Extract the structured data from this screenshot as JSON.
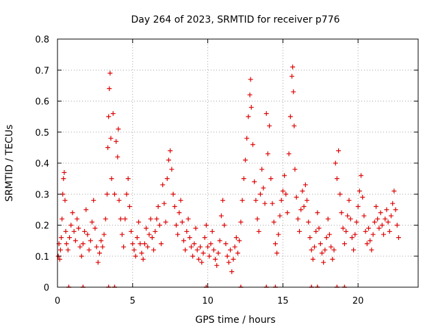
{
  "chart_data": {
    "type": "scatter",
    "title": "Day 264 of 2023, SRMTID for receiver p776",
    "xlabel": "GPS time / hours",
    "ylabel": "SRMTID / TECUs",
    "xlim": [
      0,
      24
    ],
    "ylim": [
      0,
      0.8
    ],
    "x_ticks": [
      0,
      5,
      10,
      15,
      20
    ],
    "x_tick_labels": [
      "0",
      "5",
      "10",
      "15",
      "20"
    ],
    "y_ticks": [
      0,
      0.1,
      0.2,
      0.3,
      0.4,
      0.5,
      0.6,
      0.7,
      0.8
    ],
    "y_tick_labels": [
      "0",
      "0.1",
      "0.2",
      "0.3",
      "0.4",
      "0.5",
      "0.6",
      "0.7",
      "0.8"
    ],
    "grid": true,
    "marker": "+",
    "marker_color": "#dd0000",
    "series": [
      {
        "name": "SRMTID",
        "points": [
          [
            0.05,
            0.1
          ],
          [
            0.1,
            0.14
          ],
          [
            0.15,
            0.09
          ],
          [
            0.2,
            0.12
          ],
          [
            0.25,
            0.16
          ],
          [
            0.3,
            0.22
          ],
          [
            0.35,
            0.3
          ],
          [
            0.4,
            0.35
          ],
          [
            0.45,
            0.37
          ],
          [
            0.5,
            0.28
          ],
          [
            0.55,
            0.18
          ],
          [
            0.6,
            0.14
          ],
          [
            0.7,
            0.12
          ],
          [
            0.8,
            0.16
          ],
          [
            0.9,
            0.2
          ],
          [
            1.0,
            0.24
          ],
          [
            1.1,
            0.18
          ],
          [
            1.2,
            0.15
          ],
          [
            1.3,
            0.22
          ],
          [
            1.4,
            0.19
          ],
          [
            1.5,
            0.13
          ],
          [
            1.6,
            0.1
          ],
          [
            1.7,
            0.14
          ],
          [
            1.8,
            0.18
          ],
          [
            1.9,
            0.25
          ],
          [
            2.0,
            0.17
          ],
          [
            2.1,
            0.12
          ],
          [
            2.2,
            0.15
          ],
          [
            2.3,
            0.21
          ],
          [
            2.4,
            0.28
          ],
          [
            2.5,
            0.19
          ],
          [
            2.6,
            0.13
          ],
          [
            2.7,
            0.08
          ],
          [
            2.8,
            0.11
          ],
          [
            2.9,
            0.15
          ],
          [
            3.0,
            0.13
          ],
          [
            3.1,
            0.17
          ],
          [
            3.2,
            0.22
          ],
          [
            3.3,
            0.3
          ],
          [
            3.35,
            0.45
          ],
          [
            3.4,
            0.55
          ],
          [
            3.45,
            0.64
          ],
          [
            3.5,
            0.69
          ],
          [
            3.55,
            0.48
          ],
          [
            3.6,
            0.35
          ],
          [
            3.7,
            0.56
          ],
          [
            3.8,
            0.3
          ],
          [
            3.9,
            0.47
          ],
          [
            4.0,
            0.42
          ],
          [
            4.05,
            0.51
          ],
          [
            4.1,
            0.28
          ],
          [
            4.2,
            0.22
          ],
          [
            4.3,
            0.17
          ],
          [
            4.4,
            0.13
          ],
          [
            4.5,
            0.22
          ],
          [
            4.6,
            0.3
          ],
          [
            4.7,
            0.35
          ],
          [
            4.8,
            0.26
          ],
          [
            4.9,
            0.18
          ],
          [
            5.0,
            0.14
          ],
          [
            5.1,
            0.12
          ],
          [
            5.2,
            0.1
          ],
          [
            5.3,
            0.16
          ],
          [
            5.4,
            0.21
          ],
          [
            5.5,
            0.14
          ],
          [
            5.6,
            0.11
          ],
          [
            5.7,
            0.09
          ],
          [
            5.8,
            0.14
          ],
          [
            5.9,
            0.19
          ],
          [
            6.0,
            0.13
          ],
          [
            6.1,
            0.17
          ],
          [
            6.2,
            0.22
          ],
          [
            6.3,
            0.16
          ],
          [
            6.4,
            0.12
          ],
          [
            6.5,
            0.18
          ],
          [
            6.6,
            0.22
          ],
          [
            6.7,
            0.26
          ],
          [
            6.8,
            0.2
          ],
          [
            6.9,
            0.14
          ],
          [
            7.0,
            0.33
          ],
          [
            7.1,
            0.27
          ],
          [
            7.2,
            0.21
          ],
          [
            7.3,
            0.35
          ],
          [
            7.4,
            0.41
          ],
          [
            7.5,
            0.44
          ],
          [
            7.6,
            0.38
          ],
          [
            7.7,
            0.3
          ],
          [
            7.8,
            0.26
          ],
          [
            7.9,
            0.2
          ],
          [
            8.0,
            0.17
          ],
          [
            8.1,
            0.24
          ],
          [
            8.2,
            0.28
          ],
          [
            8.3,
            0.21
          ],
          [
            8.4,
            0.15
          ],
          [
            8.5,
            0.12
          ],
          [
            8.6,
            0.18
          ],
          [
            8.7,
            0.22
          ],
          [
            8.8,
            0.16
          ],
          [
            8.9,
            0.13
          ],
          [
            9.0,
            0.1
          ],
          [
            9.1,
            0.14
          ],
          [
            9.2,
            0.19
          ],
          [
            9.3,
            0.12
          ],
          [
            9.4,
            0.09
          ],
          [
            9.5,
            0.13
          ],
          [
            9.6,
            0.08
          ],
          [
            9.7,
            0.11
          ],
          [
            9.8,
            0.16
          ],
          [
            9.9,
            0.2
          ],
          [
            10.0,
            0.13
          ],
          [
            10.1,
            0.1
          ],
          [
            10.2,
            0.14
          ],
          [
            10.3,
            0.18
          ],
          [
            10.4,
            0.12
          ],
          [
            10.5,
            0.09
          ],
          [
            10.6,
            0.07
          ],
          [
            10.7,
            0.11
          ],
          [
            10.8,
            0.15
          ],
          [
            10.9,
            0.23
          ],
          [
            11.0,
            0.28
          ],
          [
            11.1,
            0.2
          ],
          [
            11.2,
            0.14
          ],
          [
            11.3,
            0.1
          ],
          [
            11.4,
            0.08
          ],
          [
            11.5,
            0.12
          ],
          [
            11.6,
            0.05
          ],
          [
            11.7,
            0.09
          ],
          [
            11.8,
            0.13
          ],
          [
            11.9,
            0.16
          ],
          [
            12.0,
            0.11
          ],
          [
            12.1,
            0.15
          ],
          [
            12.2,
            0.21
          ],
          [
            12.3,
            0.28
          ],
          [
            12.4,
            0.35
          ],
          [
            12.5,
            0.41
          ],
          [
            12.6,
            0.48
          ],
          [
            12.7,
            0.55
          ],
          [
            12.8,
            0.62
          ],
          [
            12.85,
            0.67
          ],
          [
            12.9,
            0.58
          ],
          [
            13.0,
            0.46
          ],
          [
            13.1,
            0.34
          ],
          [
            13.2,
            0.28
          ],
          [
            13.3,
            0.22
          ],
          [
            13.4,
            0.18
          ],
          [
            13.5,
            0.3
          ],
          [
            13.6,
            0.38
          ],
          [
            13.7,
            0.32
          ],
          [
            13.8,
            0.27
          ],
          [
            13.9,
            0.56
          ],
          [
            14.0,
            0.43
          ],
          [
            14.1,
            0.52
          ],
          [
            14.2,
            0.35
          ],
          [
            14.3,
            0.27
          ],
          [
            14.4,
            0.21
          ],
          [
            14.5,
            0.14
          ],
          [
            14.6,
            0.11
          ],
          [
            14.7,
            0.17
          ],
          [
            14.8,
            0.23
          ],
          [
            14.9,
            0.28
          ],
          [
            15.0,
            0.31
          ],
          [
            15.1,
            0.36
          ],
          [
            15.2,
            0.3
          ],
          [
            15.3,
            0.24
          ],
          [
            15.4,
            0.43
          ],
          [
            15.5,
            0.55
          ],
          [
            15.6,
            0.68
          ],
          [
            15.65,
            0.71
          ],
          [
            15.7,
            0.63
          ],
          [
            15.75,
            0.52
          ],
          [
            15.8,
            0.38
          ],
          [
            15.9,
            0.29
          ],
          [
            16.0,
            0.22
          ],
          [
            16.1,
            0.18
          ],
          [
            16.2,
            0.25
          ],
          [
            16.3,
            0.31
          ],
          [
            16.4,
            0.26
          ],
          [
            16.5,
            0.33
          ],
          [
            16.6,
            0.28
          ],
          [
            16.7,
            0.21
          ],
          [
            16.8,
            0.16
          ],
          [
            16.9,
            0.12
          ],
          [
            17.0,
            0.09
          ],
          [
            17.1,
            0.13
          ],
          [
            17.2,
            0.18
          ],
          [
            17.3,
            0.24
          ],
          [
            17.4,
            0.19
          ],
          [
            17.5,
            0.14
          ],
          [
            17.6,
            0.11
          ],
          [
            17.7,
            0.08
          ],
          [
            17.8,
            0.12
          ],
          [
            17.9,
            0.16
          ],
          [
            18.0,
            0.22
          ],
          [
            18.1,
            0.17
          ],
          [
            18.2,
            0.13
          ],
          [
            18.3,
            0.09
          ],
          [
            18.4,
            0.12
          ],
          [
            18.5,
            0.4
          ],
          [
            18.6,
            0.35
          ],
          [
            18.7,
            0.44
          ],
          [
            18.8,
            0.3
          ],
          [
            18.9,
            0.24
          ],
          [
            19.0,
            0.19
          ],
          [
            19.1,
            0.14
          ],
          [
            19.2,
            0.18
          ],
          [
            19.3,
            0.23
          ],
          [
            19.4,
            0.28
          ],
          [
            19.5,
            0.22
          ],
          [
            19.6,
            0.16
          ],
          [
            19.7,
            0.12
          ],
          [
            19.8,
            0.17
          ],
          [
            19.9,
            0.21
          ],
          [
            20.0,
            0.26
          ],
          [
            20.1,
            0.31
          ],
          [
            20.2,
            0.36
          ],
          [
            20.3,
            0.29
          ],
          [
            20.4,
            0.23
          ],
          [
            20.5,
            0.18
          ],
          [
            20.6,
            0.14
          ],
          [
            20.7,
            0.19
          ],
          [
            20.8,
            0.15
          ],
          [
            20.9,
            0.12
          ],
          [
            21.0,
            0.17
          ],
          [
            21.1,
            0.21
          ],
          [
            21.2,
            0.26
          ],
          [
            21.3,
            0.22
          ],
          [
            21.4,
            0.19
          ],
          [
            21.5,
            0.24
          ],
          [
            21.6,
            0.2
          ],
          [
            21.7,
            0.17
          ],
          [
            21.8,
            0.22
          ],
          [
            21.9,
            0.25
          ],
          [
            22.0,
            0.21
          ],
          [
            22.1,
            0.18
          ],
          [
            22.2,
            0.23
          ],
          [
            22.3,
            0.27
          ],
          [
            22.4,
            0.31
          ],
          [
            22.5,
            0.25
          ],
          [
            22.6,
            0.2
          ],
          [
            22.7,
            0.16
          ]
        ]
      }
    ],
    "zero_markers_x": [
      0.75,
      1.7,
      3.4,
      3.8,
      9.9,
      12.2,
      13.9,
      14.5,
      16.9,
      17.3,
      18.6,
      19.1
    ]
  }
}
